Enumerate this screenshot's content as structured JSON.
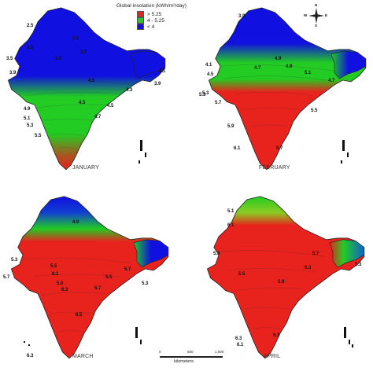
{
  "legend": {
    "title": "Global insolation (kWh/m²/day)",
    "items": [
      {
        "label": "> 5.25",
        "color": "#e8221d"
      },
      {
        "label": "4 - 5.25",
        "color": "#22cc22"
      },
      {
        "label": "< 4",
        "color": "#1010e0"
      }
    ]
  },
  "compass": {
    "n": "N",
    "s": "S",
    "e": "E",
    "w": "W"
  },
  "scale": {
    "ticks": [
      "0",
      "500",
      "1,000"
    ],
    "unit": "kilometers"
  },
  "panels": [
    {
      "month": "JANUARY",
      "labels": [
        "2.5",
        "3.1",
        "3.3",
        "3.5",
        "3.7",
        "3.9",
        "3.7",
        "4.1",
        "4.3",
        "4.5",
        "4.7",
        "4.9",
        "5.1",
        "5.3",
        "5.5",
        "4.5",
        "3.9",
        "4.5"
      ]
    },
    {
      "month": "FEBRUARY",
      "labels": [
        "3.9",
        "4.1",
        "4.5",
        "4.7",
        "4.9",
        "5.1",
        "5.3",
        "5.5",
        "5.7",
        "5.9",
        "6.1",
        "5.7",
        "4.9",
        "4.7",
        "5.3"
      ]
    },
    {
      "month": "MARCH",
      "labels": [
        "4.9",
        "5.3",
        "5.5",
        "5.7",
        "5.9",
        "6.1",
        "6.3",
        "6.5",
        "5.7",
        "5.3",
        "5.5",
        "5.7",
        "6.3"
      ]
    },
    {
      "month": "APRIL",
      "labels": [
        "5.1",
        "6.1",
        "5.3",
        "5.5",
        "5.9",
        "6.3",
        "6.3",
        "6.1",
        "6.3",
        "5.3",
        "5.7"
      ]
    }
  ]
}
